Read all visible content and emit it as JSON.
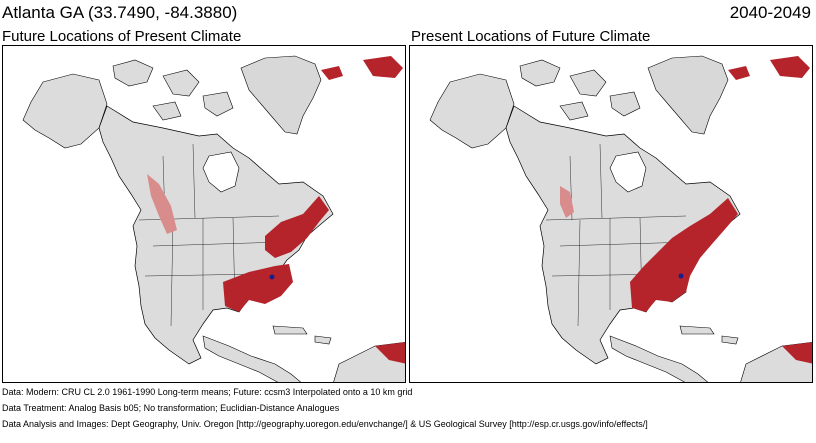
{
  "header": {
    "location": "Atlanta GA  (33.7490, -84.3880)",
    "period": "2040-2049"
  },
  "panels": [
    {
      "title": "Future Locations of Present Climate"
    },
    {
      "title": "Present Locations of Future Climate"
    }
  ],
  "footer": {
    "data_line": "Data:  Modern: CRU CL 2.0 1961-1990 Long-term means; Future: ccsm3 Interpolated onto a 10 km grid",
    "treatment_line": "Data Treatment:  Analog Basis b05; No transformation; Euclidian-Distance Analogues",
    "credits_line": "Data Analysis and Images:  Dept Geography, Univ. Oregon [http://geography.uoregon.edu/envchange/] & US Geological Survey [http://esp.cr.usgs.gov/info/effects/]"
  },
  "colors": {
    "land": "#dcdcdc",
    "land_shade": "#bdbdbd",
    "water": "#ffffff",
    "analog_strong": "#b5232b",
    "analog_weak": "#d98c8c",
    "target_marker": "#1c1c8c",
    "border": "#000000"
  },
  "map_legend_icon": "target-location-dot"
}
